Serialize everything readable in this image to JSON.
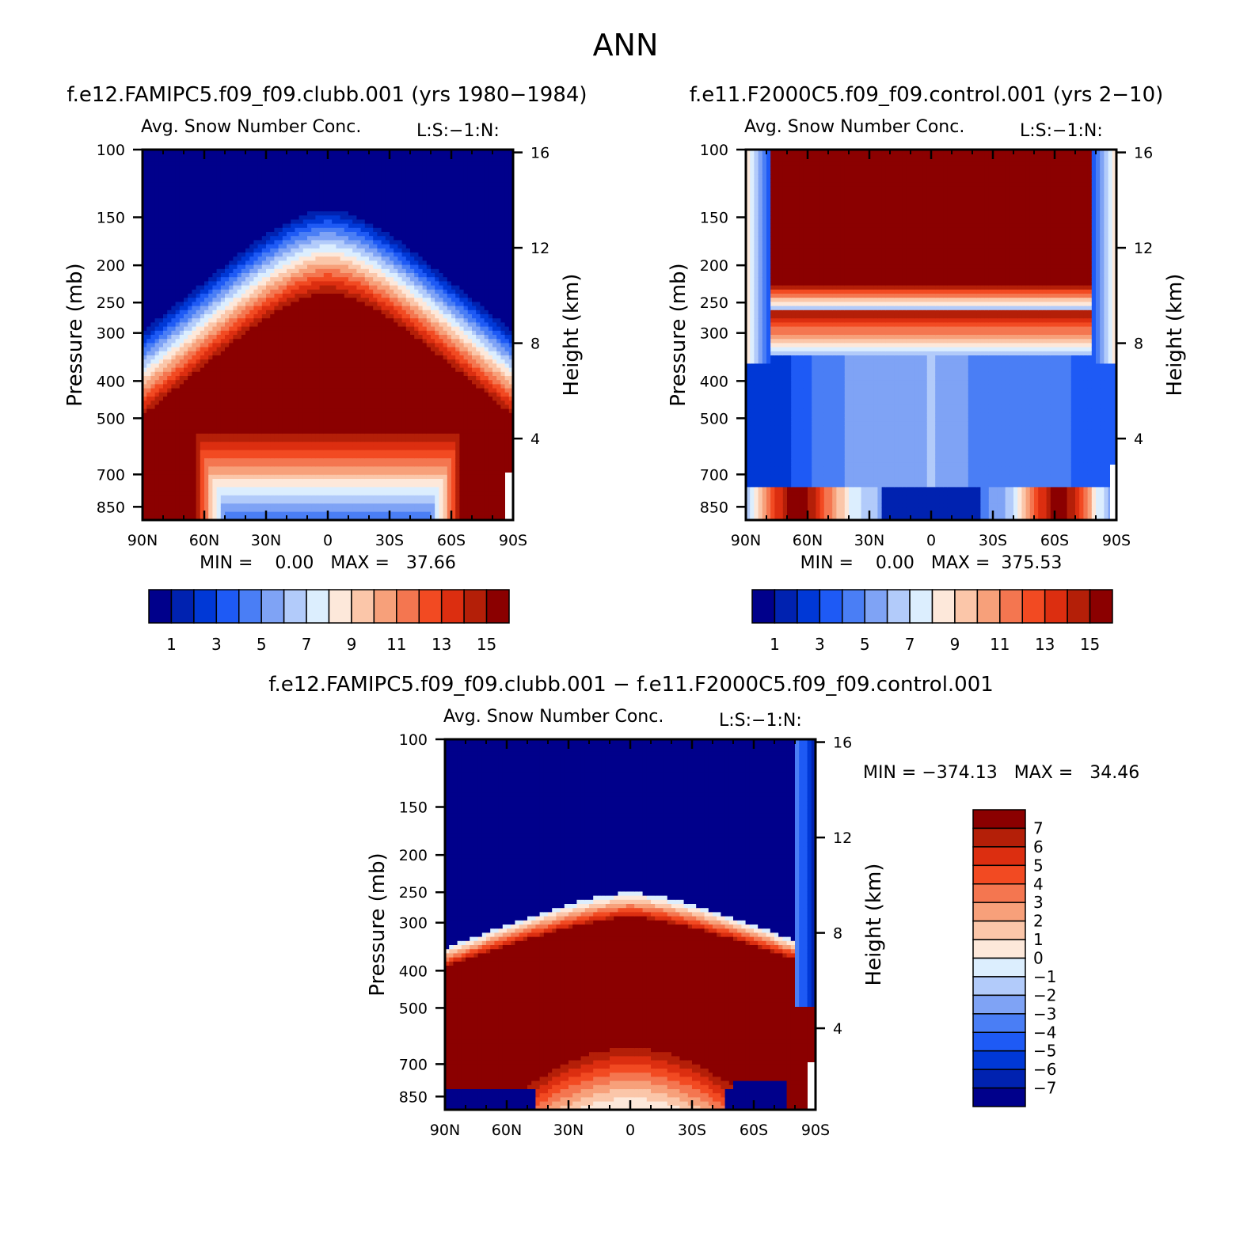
{
  "figure": {
    "title": "ANN"
  },
  "palettes": {
    "abs": [
      "#00008b",
      "#0022b0",
      "#0038d6",
      "#1e5af5",
      "#4a7ef5",
      "#7fa3f5",
      "#b2cbfa",
      "#dceefe",
      "#fde8da",
      "#fbc6a9",
      "#f7a07a",
      "#f47650",
      "#f24a22",
      "#dc2e10",
      "#b41f08",
      "#8b0000"
    ],
    "diff": [
      "#00008b",
      "#0022b0",
      "#0038d6",
      "#1e5af5",
      "#4a7ef5",
      "#7fa3f5",
      "#b2cbfa",
      "#dceefe",
      "#fde8da",
      "#fbc6a9",
      "#f7a07a",
      "#f47650",
      "#f24a22",
      "#dc2e10",
      "#b41f08",
      "#8b0000"
    ]
  },
  "chart_data": [
    {
      "id": "p1",
      "type": "heatmap",
      "title": "f.e12.FAMIPC5.f09_f09.clubb.001 (yrs 1980−1984)",
      "subtitle": "Avg. Snow Number Conc.",
      "subtitle_right": "L:S:−1:N:",
      "ylabel": "Pressure (mb)",
      "ylabel_right": "Height (km)",
      "y_ticks": [
        "100",
        "150",
        "200",
        "250",
        "300",
        "400",
        "500",
        "700",
        "850"
      ],
      "y_tick_values": [
        100,
        150,
        200,
        250,
        300,
        400,
        500,
        700,
        850
      ],
      "y_range": [
        100,
        920
      ],
      "y2_ticks": [
        "16",
        "12",
        "8",
        "4"
      ],
      "y2_tick_values": [
        16,
        12,
        8,
        4
      ],
      "x_ticks": [
        "90N",
        "60N",
        "30N",
        "0",
        "30S",
        "60S",
        "90S"
      ],
      "x_range": [
        90,
        -90
      ],
      "min_max_text": "MIN =    0.00   MAX =   37.66",
      "colorbar": {
        "orientation": "horizontal",
        "labels": [
          "1",
          "3",
          "5",
          "7",
          "9",
          "11",
          "13",
          "15"
        ],
        "n_bins": 16
      },
      "pattern": "arch",
      "field": {
        "top_level": 240,
        "base_level": 560,
        "hole_bottom_level": 540,
        "hole_halfwidth": 55
      }
    },
    {
      "id": "p2",
      "type": "heatmap",
      "title": "f.e11.F2000C5.f09_f09.control.001 (yrs 2−10)",
      "subtitle": "Avg. Snow Number Conc.",
      "subtitle_right": "L:S:−1:N:",
      "ylabel": "Pressure (mb)",
      "ylabel_right": "Height (km)",
      "y_ticks": [
        "100",
        "150",
        "200",
        "250",
        "300",
        "400",
        "500",
        "700",
        "850"
      ],
      "y_tick_values": [
        100,
        150,
        200,
        250,
        300,
        400,
        500,
        700,
        850
      ],
      "y_range": [
        100,
        920
      ],
      "y2_ticks": [
        "16",
        "12",
        "8",
        "4"
      ],
      "y2_tick_values": [
        16,
        12,
        8,
        4
      ],
      "x_ticks": [
        "90N",
        "60N",
        "30N",
        "0",
        "30S",
        "60S",
        "90S"
      ],
      "x_range": [
        90,
        -90
      ],
      "min_max_text": "MIN =    0.00   MAX =  375.53",
      "colorbar": {
        "orientation": "horizontal",
        "labels": [
          "1",
          "3",
          "5",
          "7",
          "9",
          "11",
          "13",
          "15"
        ],
        "n_bins": 16
      },
      "pattern": "upper_slab",
      "field": {
        "slab_bottom_level": 260,
        "low_pockets": [
          [
            -70,
            -55
          ],
          [
            55,
            75
          ]
        ]
      }
    },
    {
      "id": "p3",
      "type": "heatmap",
      "title": "f.e12.FAMIPC5.f09_f09.clubb.001 − f.e11.F2000C5.f09_f09.control.001",
      "subtitle": "Avg. Snow Number Conc.",
      "subtitle_right": "L:S:−1:N:",
      "ylabel": "Pressure (mb)",
      "ylabel_right": "Height (km)",
      "y_ticks": [
        "100",
        "150",
        "200",
        "250",
        "300",
        "400",
        "500",
        "700",
        "850"
      ],
      "y_tick_values": [
        100,
        150,
        200,
        250,
        300,
        400,
        500,
        700,
        850
      ],
      "y_range": [
        100,
        920
      ],
      "y2_ticks": [
        "16",
        "12",
        "8",
        "4"
      ],
      "y2_tick_values": [
        16,
        12,
        8,
        4
      ],
      "x_ticks": [
        "90N",
        "60N",
        "30N",
        "0",
        "30S",
        "60S",
        "90S"
      ],
      "x_range": [
        90,
        -90
      ],
      "min_max_text": "MIN = −374.13   MAX =   34.46",
      "colorbar": {
        "orientation": "vertical",
        "labels": [
          "7",
          "6",
          "5",
          "4",
          "3",
          "2",
          "1",
          "0",
          "−1",
          "−2",
          "−3",
          "−4",
          "−5",
          "−6",
          "−7"
        ],
        "n_bins": 16
      },
      "pattern": "difference",
      "field": {
        "top_level": 250,
        "base_level": 620
      }
    }
  ]
}
